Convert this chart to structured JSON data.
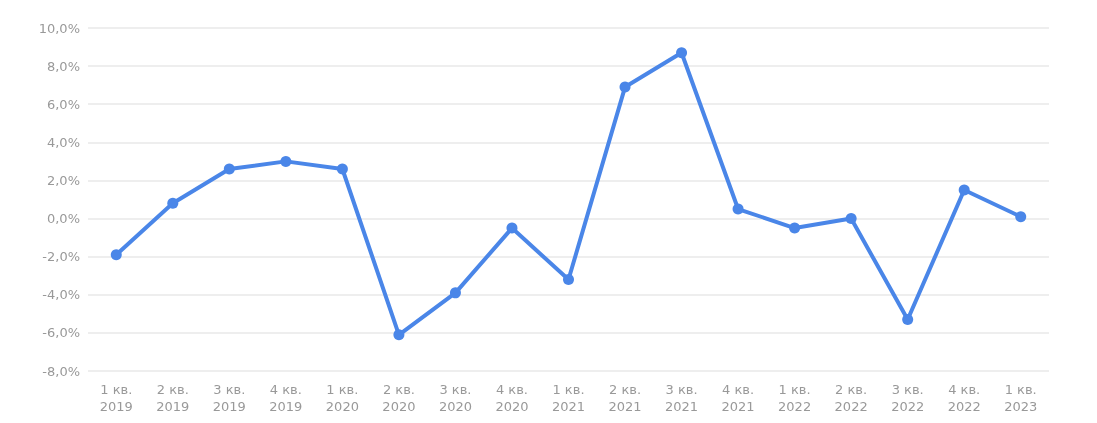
{
  "chart_data": {
    "type": "line",
    "categories": [
      "1 кв.\n2019",
      "2 кв.\n2019",
      "3 кв.\n2019",
      "4 кв.\n2019",
      "1 кв.\n2020",
      "2 кв.\n2020",
      "3 кв.\n2020",
      "4 кв.\n2020",
      "1 кв.\n2021",
      "2 кв.\n2021",
      "3 кв.\n2021",
      "4 кв.\n2021",
      "1 кв.\n2022",
      "2 кв.\n2022",
      "3 кв.\n2022",
      "4 кв.\n2022",
      "1 кв.\n2023"
    ],
    "series": [
      {
        "color": "#4a86e8",
        "values": [
          -1.9,
          0.8,
          2.6,
          3.0,
          2.6,
          -6.1,
          -3.9,
          -0.5,
          -3.2,
          6.9,
          8.7,
          0.5,
          -0.5,
          0.0,
          -5.3,
          1.5,
          0.1
        ]
      }
    ],
    "ylim": [
      -8,
      10
    ],
    "yticks": [
      {
        "value": -8,
        "label": "-8,0%"
      },
      {
        "value": -6,
        "label": "-6,0%"
      },
      {
        "value": -4,
        "label": "-4,0%"
      },
      {
        "value": -2,
        "label": "-2,0%"
      },
      {
        "value": 0,
        "label": "0,0%"
      },
      {
        "value": 2,
        "label": "2,0%"
      },
      {
        "value": 4,
        "label": "4,0%"
      },
      {
        "value": 6,
        "label": "6,0%"
      },
      {
        "value": 8,
        "label": "8,0%"
      },
      {
        "value": 10,
        "label": "10,0%"
      }
    ],
    "grid": "y",
    "marker": "circle",
    "line_style": "solid"
  }
}
